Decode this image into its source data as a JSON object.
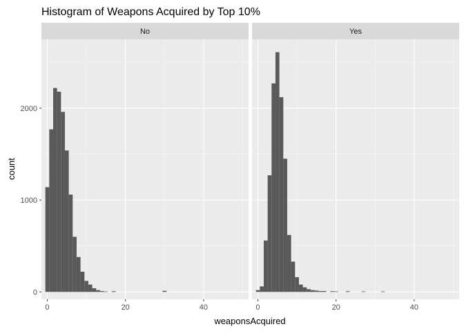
{
  "colors": {
    "panel_bg": "#ebebeb",
    "strip_bg": "#d9d9d9",
    "grid_major": "#ffffff",
    "grid_minor": "#f5f5f5",
    "bar_fill": "#595959",
    "tick_text": "#4d4d4d"
  },
  "chart_data": {
    "type": "bar",
    "title": "Histogram of Weapons Acquired by Top 10%",
    "xlabel": "weaponsAcquired",
    "ylabel": "count",
    "xlim": [
      -1.5,
      51.5
    ],
    "ylim": [
      -80,
      2750
    ],
    "x_ticks": [
      0,
      20,
      40
    ],
    "y_ticks": [
      0,
      1000,
      2000
    ],
    "bin_width": 1,
    "facet_variable_values": [
      "No",
      "Yes"
    ],
    "facets": [
      {
        "label": "No",
        "bins": [
          {
            "x": 0,
            "count": 1140
          },
          {
            "x": 1,
            "count": 1770
          },
          {
            "x": 2,
            "count": 2220
          },
          {
            "x": 3,
            "count": 2180
          },
          {
            "x": 4,
            "count": 1960
          },
          {
            "x": 5,
            "count": 1540
          },
          {
            "x": 6,
            "count": 1060
          },
          {
            "x": 7,
            "count": 600
          },
          {
            "x": 8,
            "count": 380
          },
          {
            "x": 9,
            "count": 220
          },
          {
            "x": 10,
            "count": 120
          },
          {
            "x": 11,
            "count": 80
          },
          {
            "x": 12,
            "count": 40
          },
          {
            "x": 13,
            "count": 20
          },
          {
            "x": 14,
            "count": 10
          },
          {
            "x": 15,
            "count": 5
          },
          {
            "x": 17,
            "count": 8
          },
          {
            "x": 30,
            "count": 12
          }
        ]
      },
      {
        "label": "Yes",
        "bins": [
          {
            "x": 0,
            "count": 20
          },
          {
            "x": 1,
            "count": 60
          },
          {
            "x": 2,
            "count": 560
          },
          {
            "x": 3,
            "count": 1270
          },
          {
            "x": 4,
            "count": 2270
          },
          {
            "x": 5,
            "count": 2610
          },
          {
            "x": 6,
            "count": 2120
          },
          {
            "x": 7,
            "count": 1450
          },
          {
            "x": 8,
            "count": 620
          },
          {
            "x": 9,
            "count": 330
          },
          {
            "x": 10,
            "count": 160
          },
          {
            "x": 11,
            "count": 80
          },
          {
            "x": 12,
            "count": 50
          },
          {
            "x": 13,
            "count": 30
          },
          {
            "x": 14,
            "count": 20
          },
          {
            "x": 15,
            "count": 15
          },
          {
            "x": 16,
            "count": 10
          },
          {
            "x": 17,
            "count": 10
          },
          {
            "x": 19,
            "count": 8
          },
          {
            "x": 20,
            "count": 6
          },
          {
            "x": 23,
            "count": 8
          },
          {
            "x": 27,
            "count": 6
          },
          {
            "x": 32,
            "count": 6
          }
        ]
      }
    ]
  }
}
